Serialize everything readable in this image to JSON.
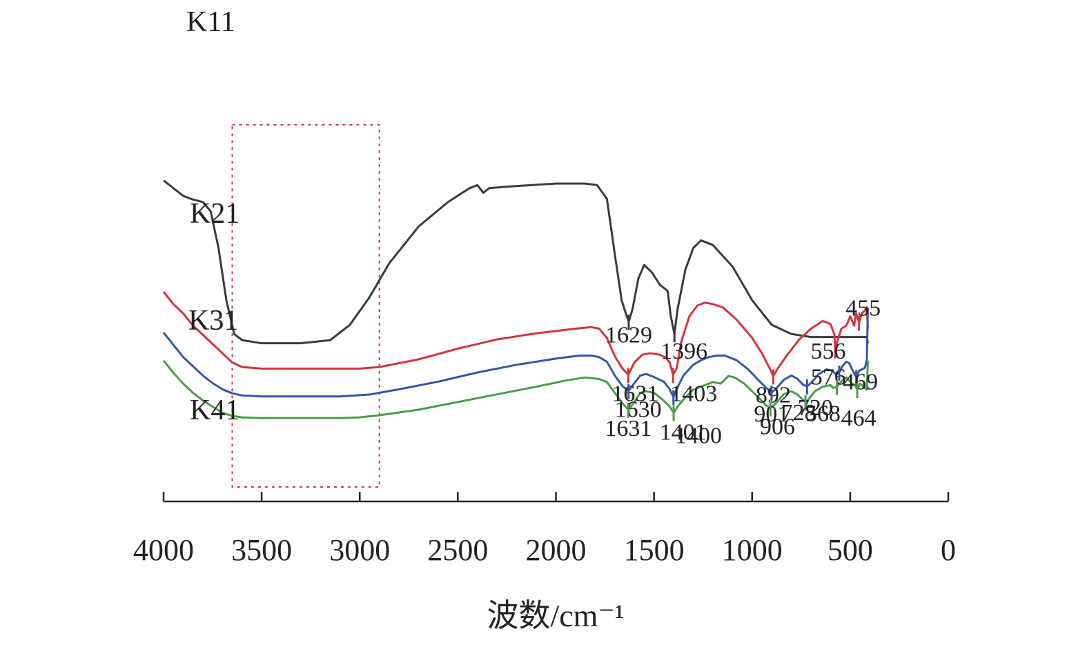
{
  "chart_data": {
    "type": "line",
    "xlabel": "波数/cm⁻¹",
    "xlim": [
      4000,
      0
    ],
    "x_reversed": true,
    "xticks": [
      4000,
      3500,
      3000,
      2500,
      2000,
      1500,
      1000,
      500,
      0
    ],
    "y_axis_shown": false,
    "grid": false,
    "highlight_box_x": [
      3650,
      2900
    ],
    "series": [
      {
        "name": "K11",
        "color": "#3a3a3a",
        "points": [
          [
            4000,
            0.94
          ],
          [
            3980,
            0.93
          ],
          [
            3940,
            0.91
          ],
          [
            3900,
            0.89
          ],
          [
            3860,
            0.88
          ],
          [
            3800,
            0.87
          ],
          [
            3760,
            0.84
          ],
          [
            3720,
            0.72
          ],
          [
            3680,
            0.55
          ],
          [
            3640,
            0.44
          ],
          [
            3600,
            0.42
          ],
          [
            3500,
            0.41
          ],
          [
            3300,
            0.41
          ],
          [
            3150,
            0.42
          ],
          [
            3050,
            0.47
          ],
          [
            2950,
            0.56
          ],
          [
            2850,
            0.67
          ],
          [
            2700,
            0.79
          ],
          [
            2550,
            0.87
          ],
          [
            2440,
            0.915
          ],
          [
            2400,
            0.925
          ],
          [
            2370,
            0.9
          ],
          [
            2340,
            0.915
          ],
          [
            2250,
            0.92
          ],
          [
            2000,
            0.93
          ],
          [
            1850,
            0.93
          ],
          [
            1790,
            0.925
          ],
          [
            1740,
            0.88
          ],
          [
            1700,
            0.7
          ],
          [
            1665,
            0.55
          ],
          [
            1640,
            0.5
          ],
          [
            1629,
            0.48
          ],
          [
            1610,
            0.52
          ],
          [
            1580,
            0.62
          ],
          [
            1550,
            0.665
          ],
          [
            1510,
            0.64
          ],
          [
            1470,
            0.6
          ],
          [
            1430,
            0.58
          ],
          [
            1415,
            0.5
          ],
          [
            1396,
            0.44
          ],
          [
            1380,
            0.52
          ],
          [
            1340,
            0.65
          ],
          [
            1300,
            0.72
          ],
          [
            1260,
            0.745
          ],
          [
            1200,
            0.73
          ],
          [
            1100,
            0.66
          ],
          [
            1000,
            0.55
          ],
          [
            900,
            0.47
          ],
          [
            800,
            0.44
          ],
          [
            700,
            0.43
          ],
          [
            600,
            0.43
          ],
          [
            450,
            0.43
          ],
          [
            415,
            0.43
          ],
          [
            410,
            0.41
          ]
        ],
        "peaks": [
          1629,
          1396
        ]
      },
      {
        "name": "K21",
        "color": "#d4343c",
        "points": [
          [
            4000,
            0.42
          ],
          [
            3950,
            0.38
          ],
          [
            3900,
            0.35
          ],
          [
            3850,
            0.31
          ],
          [
            3800,
            0.28
          ],
          [
            3750,
            0.25
          ],
          [
            3700,
            0.22
          ],
          [
            3650,
            0.19
          ],
          [
            3600,
            0.175
          ],
          [
            3500,
            0.17
          ],
          [
            3300,
            0.17
          ],
          [
            3000,
            0.17
          ],
          [
            2900,
            0.175
          ],
          [
            2700,
            0.2
          ],
          [
            2500,
            0.235
          ],
          [
            2300,
            0.265
          ],
          [
            2100,
            0.285
          ],
          [
            1900,
            0.3
          ],
          [
            1820,
            0.305
          ],
          [
            1780,
            0.3
          ],
          [
            1740,
            0.27
          ],
          [
            1700,
            0.21
          ],
          [
            1660,
            0.17
          ],
          [
            1631,
            0.15
          ],
          [
            1600,
            0.19
          ],
          [
            1560,
            0.215
          ],
          [
            1520,
            0.22
          ],
          [
            1470,
            0.215
          ],
          [
            1440,
            0.205
          ],
          [
            1420,
            0.19
          ],
          [
            1403,
            0.15
          ],
          [
            1385,
            0.17
          ],
          [
            1360,
            0.26
          ],
          [
            1320,
            0.34
          ],
          [
            1280,
            0.375
          ],
          [
            1240,
            0.385
          ],
          [
            1200,
            0.38
          ],
          [
            1150,
            0.37
          ],
          [
            1080,
            0.33
          ],
          [
            1000,
            0.27
          ],
          [
            950,
            0.22
          ],
          [
            910,
            0.17
          ],
          [
            892,
            0.145
          ],
          [
            870,
            0.17
          ],
          [
            820,
            0.215
          ],
          [
            760,
            0.265
          ],
          [
            700,
            0.3
          ],
          [
            640,
            0.325
          ],
          [
            600,
            0.315
          ],
          [
            580,
            0.28
          ],
          [
            576,
            0.23
          ],
          [
            565,
            0.26
          ],
          [
            545,
            0.3
          ],
          [
            520,
            0.31
          ],
          [
            500,
            0.34
          ],
          [
            480,
            0.31
          ],
          [
            470,
            0.35
          ],
          [
            455,
            0.32
          ],
          [
            440,
            0.35
          ],
          [
            425,
            0.36
          ],
          [
            415,
            0.37
          ],
          [
            410,
            0.3
          ]
        ]
      },
      {
        "name": "K31",
        "color": "#3456a4",
        "points": [
          [
            4000,
            0.22
          ],
          [
            3950,
            0.18
          ],
          [
            3900,
            0.14
          ],
          [
            3850,
            0.11
          ],
          [
            3800,
            0.08
          ],
          [
            3750,
            0.055
          ],
          [
            3700,
            0.035
          ],
          [
            3650,
            0.022
          ],
          [
            3600,
            0.015
          ],
          [
            3500,
            0.012
          ],
          [
            3300,
            0.012
          ],
          [
            3100,
            0.012
          ],
          [
            2950,
            0.018
          ],
          [
            2800,
            0.035
          ],
          [
            2600,
            0.06
          ],
          [
            2400,
            0.09
          ],
          [
            2200,
            0.115
          ],
          [
            2000,
            0.135
          ],
          [
            1880,
            0.145
          ],
          [
            1820,
            0.145
          ],
          [
            1780,
            0.14
          ],
          [
            1740,
            0.125
          ],
          [
            1700,
            0.08
          ],
          [
            1660,
            0.045
          ],
          [
            1630,
            0.03
          ],
          [
            1600,
            0.055
          ],
          [
            1570,
            0.08
          ],
          [
            1540,
            0.085
          ],
          [
            1500,
            0.075
          ],
          [
            1450,
            0.06
          ],
          [
            1420,
            0.035
          ],
          [
            1401,
            0.01
          ],
          [
            1385,
            0.035
          ],
          [
            1350,
            0.08
          ],
          [
            1300,
            0.115
          ],
          [
            1260,
            0.13
          ],
          [
            1220,
            0.14
          ],
          [
            1180,
            0.145
          ],
          [
            1140,
            0.145
          ],
          [
            1080,
            0.13
          ],
          [
            1020,
            0.1
          ],
          [
            960,
            0.06
          ],
          [
            920,
            0.035
          ],
          [
            901,
            0.025
          ],
          [
            880,
            0.035
          ],
          [
            840,
            0.065
          ],
          [
            800,
            0.08
          ],
          [
            770,
            0.07
          ],
          [
            740,
            0.05
          ],
          [
            720,
            0.045
          ],
          [
            700,
            0.055
          ],
          [
            660,
            0.085
          ],
          [
            620,
            0.1
          ],
          [
            590,
            0.095
          ],
          [
            575,
            0.085
          ],
          [
            556,
            0.09
          ],
          [
            540,
            0.11
          ],
          [
            520,
            0.125
          ],
          [
            505,
            0.12
          ],
          [
            490,
            0.1
          ],
          [
            478,
            0.085
          ],
          [
            469,
            0.075
          ],
          [
            455,
            0.095
          ],
          [
            440,
            0.1
          ],
          [
            425,
            0.105
          ],
          [
            415,
            0.13
          ],
          [
            410,
            0.3
          ]
        ]
      },
      {
        "name": "K41",
        "color": "#4d9a4a",
        "points": [
          [
            4000,
            0.05
          ],
          [
            3950,
            0.01
          ],
          [
            3900,
            -0.025
          ],
          [
            3850,
            -0.055
          ],
          [
            3800,
            -0.08
          ],
          [
            3750,
            -0.1
          ],
          [
            3700,
            -0.12
          ],
          [
            3650,
            -0.13
          ],
          [
            3600,
            -0.135
          ],
          [
            3500,
            -0.137
          ],
          [
            3300,
            -0.137
          ],
          [
            3100,
            -0.137
          ],
          [
            3000,
            -0.135
          ],
          [
            2900,
            -0.128
          ],
          [
            2700,
            -0.11
          ],
          [
            2500,
            -0.085
          ],
          [
            2300,
            -0.06
          ],
          [
            2100,
            -0.035
          ],
          [
            1950,
            -0.015
          ],
          [
            1850,
            -0.005
          ],
          [
            1780,
            -0.01
          ],
          [
            1740,
            -0.02
          ],
          [
            1700,
            -0.055
          ],
          [
            1660,
            -0.09
          ],
          [
            1631,
            -0.11
          ],
          [
            1600,
            -0.085
          ],
          [
            1570,
            -0.055
          ],
          [
            1540,
            -0.05
          ],
          [
            1500,
            -0.055
          ],
          [
            1460,
            -0.075
          ],
          [
            1420,
            -0.1
          ],
          [
            1400,
            -0.12
          ],
          [
            1380,
            -0.1
          ],
          [
            1340,
            -0.07
          ],
          [
            1300,
            -0.045
          ],
          [
            1240,
            -0.03
          ],
          [
            1200,
            -0.02
          ],
          [
            1160,
            -0.025
          ],
          [
            1120,
            0.0
          ],
          [
            1090,
            -0.005
          ],
          [
            1040,
            -0.025
          ],
          [
            1000,
            -0.05
          ],
          [
            960,
            -0.075
          ],
          [
            930,
            -0.095
          ],
          [
            906,
            -0.105
          ],
          [
            880,
            -0.09
          ],
          [
            840,
            -0.06
          ],
          [
            800,
            -0.05
          ],
          [
            770,
            -0.06
          ],
          [
            745,
            -0.075
          ],
          [
            728,
            -0.085
          ],
          [
            710,
            -0.075
          ],
          [
            680,
            -0.05
          ],
          [
            640,
            -0.035
          ],
          [
            600,
            -0.03
          ],
          [
            585,
            -0.04
          ],
          [
            568,
            -0.035
          ],
          [
            555,
            -0.025
          ],
          [
            540,
            -0.015
          ],
          [
            520,
            -0.005
          ],
          [
            505,
            -0.015
          ],
          [
            490,
            -0.025
          ],
          [
            475,
            -0.03
          ],
          [
            464,
            -0.045
          ],
          [
            450,
            -0.025
          ],
          [
            440,
            -0.03
          ],
          [
            425,
            -0.04
          ],
          [
            415,
            -0.045
          ],
          [
            410,
            0.05
          ]
        ]
      }
    ],
    "peak_labels": [
      {
        "series": "K11",
        "x": 1629,
        "text": "1629"
      },
      {
        "series": "K11",
        "x": 1396,
        "text": "1396"
      },
      {
        "series": "K21",
        "x": 1631,
        "text": "1631"
      },
      {
        "series": "K21",
        "x": 1403,
        "text": "1403"
      },
      {
        "series": "K21",
        "x": 892,
        "text": "892"
      },
      {
        "series": "K21",
        "x": 576,
        "text": "576"
      },
      {
        "series": "K21",
        "x": 455,
        "text": "455"
      },
      {
        "series": "K31",
        "x": 1630,
        "text": "1630"
      },
      {
        "series": "K31",
        "x": 1401,
        "text": "1401"
      },
      {
        "series": "K31",
        "x": 901,
        "text": "901"
      },
      {
        "series": "K31",
        "x": 720,
        "text": "720"
      },
      {
        "series": "K31",
        "x": 556,
        "text": "556"
      },
      {
        "series": "K31",
        "x": 469,
        "text": "469"
      },
      {
        "series": "K41",
        "x": 1631,
        "text": "1631"
      },
      {
        "series": "K41",
        "x": 1400,
        "text": "1400"
      },
      {
        "series": "K41",
        "x": 906,
        "text": "906"
      },
      {
        "series": "K41",
        "x": 728,
        "text": "728"
      },
      {
        "series": "K41",
        "x": 568,
        "text": "568"
      },
      {
        "series": "K41",
        "x": 464,
        "text": "464"
      }
    ]
  }
}
